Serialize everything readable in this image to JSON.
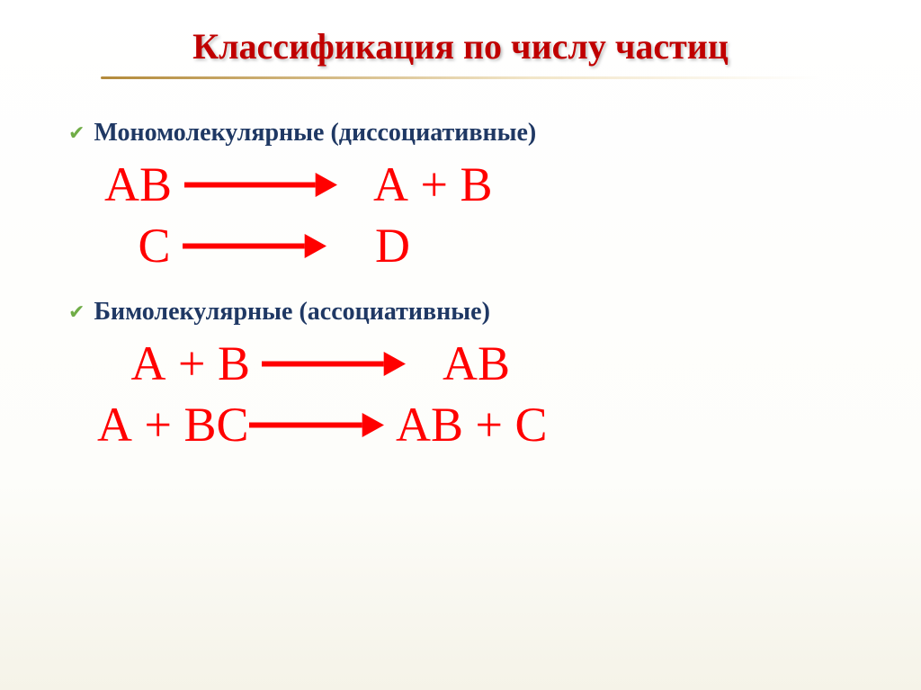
{
  "colors": {
    "title": "#c00000",
    "bullet_text": "#1f3864",
    "check": "#70ad47",
    "equation": "#ff0000",
    "underline_start": "#b38a3a",
    "underline_end": "#f2e6c9",
    "arrow_fill": "#ff0000"
  },
  "title": {
    "text": "Классификация по числу частиц",
    "fontsize": 40,
    "underline_width": 800
  },
  "sections": [
    {
      "label": "Мономолекулярные (диссоциативные)",
      "label_fontsize": 28,
      "check_fontsize": 22,
      "eq_fontsize": 54,
      "equations": [
        {
          "left": "АВ ",
          "left_pad": 20,
          "arrow_w": 170,
          "right": "   А + В"
        },
        {
          "left": " С ",
          "left_pad": 44,
          "arrow_w": 160,
          "right": "    D"
        }
      ]
    },
    {
      "label": "Бимолекулярные (ассоциативные)",
      "label_fontsize": 28,
      "check_fontsize": 22,
      "eq_fontsize": 54,
      "equations": [
        {
          "left": " А + В ",
          "left_pad": 36,
          "arrow_w": 160,
          "right": "   АВ"
        },
        {
          "left": "А + ВС",
          "left_pad": 12,
          "arrow_w": 150,
          "right": " АВ + С"
        }
      ]
    }
  ]
}
